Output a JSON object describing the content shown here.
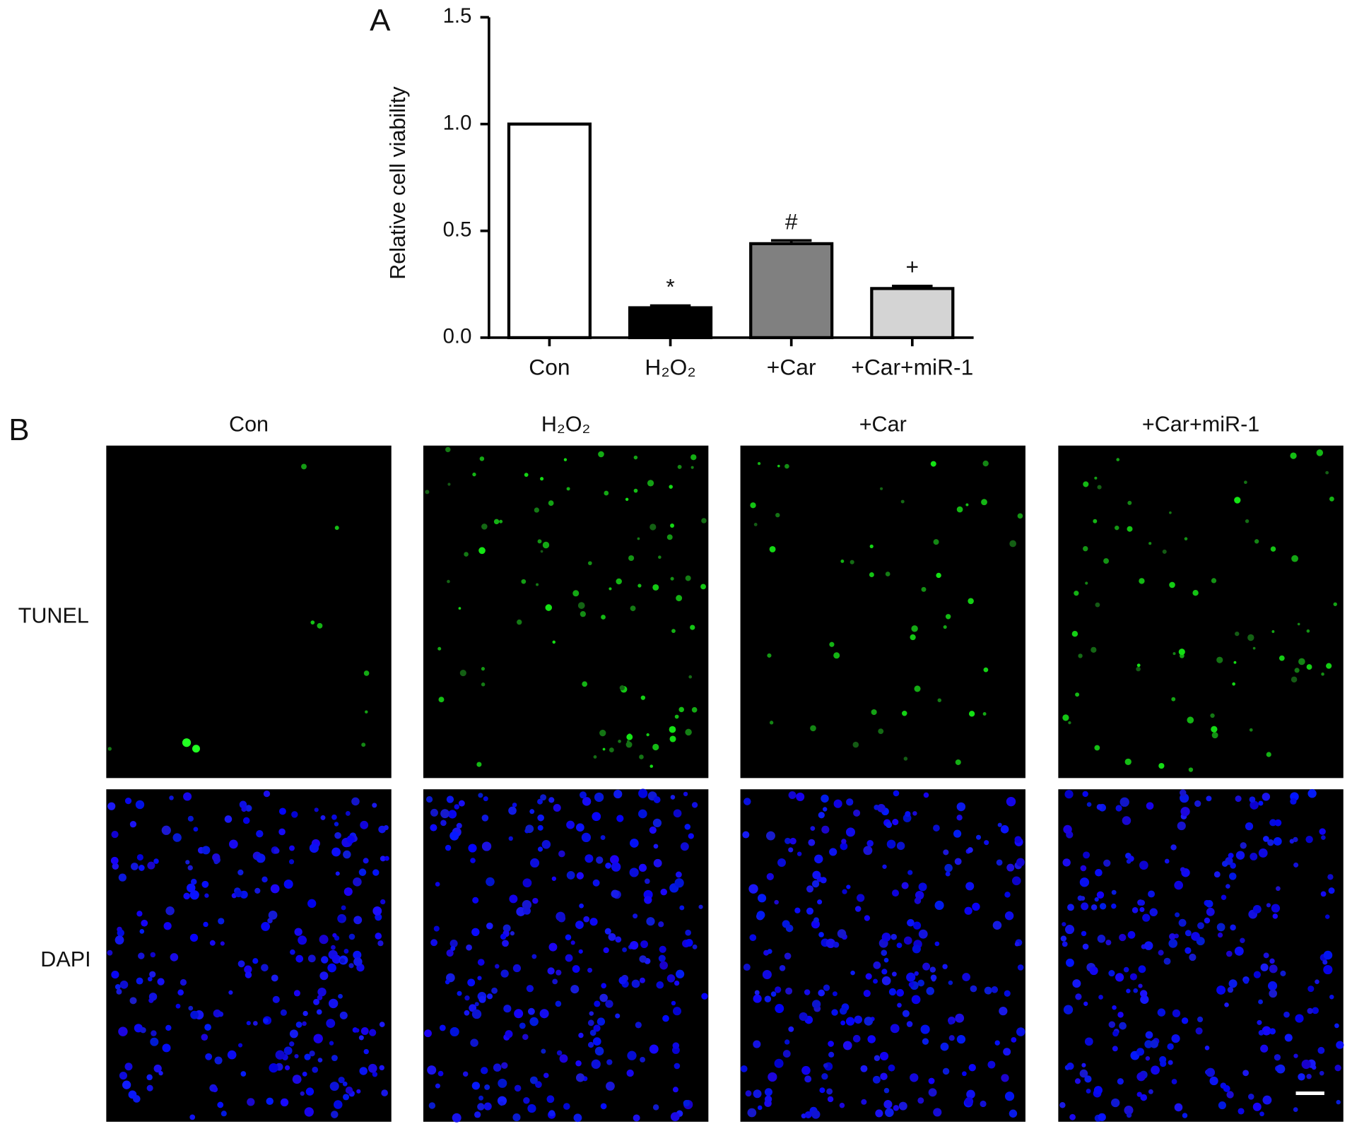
{
  "chart_data": {
    "type": "bar",
    "panel_label": "A",
    "y_label": "Relative cell viability",
    "categories": [
      "Con",
      "H₂O₂",
      "+Car",
      "+Car+miR-1"
    ],
    "values": [
      1.0,
      0.14,
      0.44,
      0.23
    ],
    "errors": [
      0,
      0.01,
      0.015,
      0.012
    ],
    "annotations": [
      null,
      "*",
      "#",
      "+"
    ],
    "colors": [
      "#ffffff",
      "#000000",
      "#808080",
      "#d4d4d4"
    ],
    "ylim": [
      0,
      1.5
    ],
    "yticks": [
      {
        "value": 0,
        "label": "0.0"
      },
      0.5,
      {
        "value": 1,
        "label": "1.0"
      },
      1.5
    ]
  },
  "panel_b": {
    "label": "B",
    "columns": [
      "Con",
      "H₂O₂",
      "+Car",
      "+Car+miR-1"
    ],
    "rows": [
      "TUNEL",
      "DAPI"
    ]
  }
}
